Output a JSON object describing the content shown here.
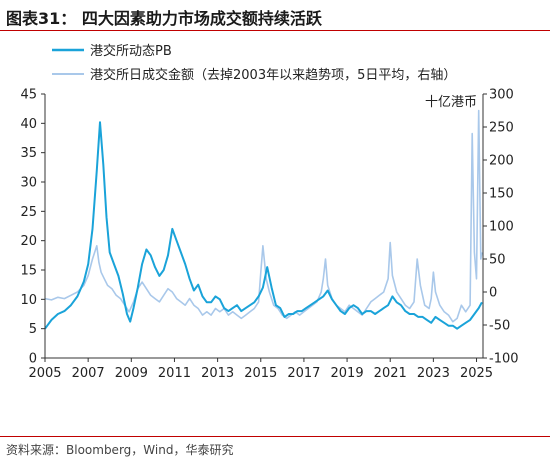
{
  "figure": {
    "title": "图表31：  四大因素助力市场成交额持续活跃",
    "source": "资料来源：Bloomberg，Wind，华泰研究"
  },
  "chart_data": {
    "type": "line",
    "left_axis": {
      "range": [
        0,
        45
      ],
      "ticks": [
        "0",
        "5",
        "10",
        "15",
        "20",
        "25",
        "30",
        "35",
        "40",
        "45"
      ]
    },
    "right_axis": {
      "range": [
        -100,
        300
      ],
      "ticks": [
        "-100",
        "-50",
        "0",
        "50",
        "100",
        "150",
        "200",
        "250",
        "300"
      ],
      "unit": "十亿港币"
    },
    "x_axis": {
      "range": [
        2005,
        2025.3
      ],
      "ticks": [
        "2005",
        "2007",
        "2009",
        "2011",
        "2013",
        "2015",
        "2017",
        "2019",
        "2021",
        "2023",
        "2025"
      ]
    },
    "legend": {
      "position": "top-left"
    },
    "grid": false,
    "series": [
      {
        "name": "港交所动态PB",
        "axis": "left",
        "color": "#1aa3d9",
        "points": [
          [
            2005.0,
            5.0
          ],
          [
            2005.3,
            6.5
          ],
          [
            2005.6,
            7.5
          ],
          [
            2005.9,
            8.0
          ],
          [
            2006.2,
            9.0
          ],
          [
            2006.5,
            10.5
          ],
          [
            2006.8,
            13.0
          ],
          [
            2007.0,
            16.0
          ],
          [
            2007.2,
            22.0
          ],
          [
            2007.4,
            32.0
          ],
          [
            2007.55,
            40.2
          ],
          [
            2007.7,
            33.0
          ],
          [
            2007.85,
            24.0
          ],
          [
            2008.0,
            18.0
          ],
          [
            2008.2,
            16.0
          ],
          [
            2008.4,
            14.0
          ],
          [
            2008.6,
            11.0
          ],
          [
            2008.8,
            7.5
          ],
          [
            2008.95,
            6.2
          ],
          [
            2009.1,
            8.5
          ],
          [
            2009.3,
            12.0
          ],
          [
            2009.5,
            16.0
          ],
          [
            2009.7,
            18.5
          ],
          [
            2009.9,
            17.5
          ],
          [
            2010.1,
            15.5
          ],
          [
            2010.3,
            14.0
          ],
          [
            2010.5,
            15.0
          ],
          [
            2010.7,
            17.5
          ],
          [
            2010.9,
            22.0
          ],
          [
            2011.1,
            20.0
          ],
          [
            2011.3,
            18.0
          ],
          [
            2011.5,
            16.0
          ],
          [
            2011.7,
            13.5
          ],
          [
            2011.9,
            11.5
          ],
          [
            2012.1,
            12.5
          ],
          [
            2012.3,
            10.5
          ],
          [
            2012.5,
            9.5
          ],
          [
            2012.7,
            9.5
          ],
          [
            2012.9,
            10.5
          ],
          [
            2013.1,
            10.0
          ],
          [
            2013.3,
            8.5
          ],
          [
            2013.5,
            8.0
          ],
          [
            2013.7,
            8.5
          ],
          [
            2013.9,
            9.0
          ],
          [
            2014.1,
            8.0
          ],
          [
            2014.3,
            8.5
          ],
          [
            2014.5,
            9.0
          ],
          [
            2014.7,
            9.5
          ],
          [
            2014.9,
            10.5
          ],
          [
            2015.1,
            12.0
          ],
          [
            2015.3,
            15.5
          ],
          [
            2015.5,
            12.0
          ],
          [
            2015.7,
            9.0
          ],
          [
            2015.9,
            8.5
          ],
          [
            2016.1,
            7.0
          ],
          [
            2016.3,
            7.5
          ],
          [
            2016.5,
            7.5
          ],
          [
            2016.7,
            8.0
          ],
          [
            2016.9,
            8.0
          ],
          [
            2017.1,
            8.5
          ],
          [
            2017.3,
            9.0
          ],
          [
            2017.5,
            9.5
          ],
          [
            2017.7,
            10.0
          ],
          [
            2017.9,
            10.5
          ],
          [
            2018.1,
            11.5
          ],
          [
            2018.3,
            10.0
          ],
          [
            2018.5,
            9.0
          ],
          [
            2018.7,
            8.0
          ],
          [
            2018.9,
            7.5
          ],
          [
            2019.1,
            8.5
          ],
          [
            2019.3,
            9.0
          ],
          [
            2019.5,
            8.5
          ],
          [
            2019.7,
            7.5
          ],
          [
            2019.9,
            8.0
          ],
          [
            2020.1,
            8.0
          ],
          [
            2020.3,
            7.5
          ],
          [
            2020.5,
            8.0
          ],
          [
            2020.7,
            8.5
          ],
          [
            2020.9,
            9.0
          ],
          [
            2021.1,
            10.5
          ],
          [
            2021.3,
            9.5
          ],
          [
            2021.5,
            9.0
          ],
          [
            2021.7,
            8.0
          ],
          [
            2021.9,
            7.5
          ],
          [
            2022.1,
            7.5
          ],
          [
            2022.3,
            7.0
          ],
          [
            2022.5,
            7.0
          ],
          [
            2022.7,
            6.5
          ],
          [
            2022.9,
            6.0
          ],
          [
            2023.1,
            7.0
          ],
          [
            2023.3,
            6.5
          ],
          [
            2023.5,
            6.0
          ],
          [
            2023.7,
            5.5
          ],
          [
            2023.9,
            5.5
          ],
          [
            2024.1,
            5.0
          ],
          [
            2024.3,
            5.5
          ],
          [
            2024.5,
            6.0
          ],
          [
            2024.7,
            6.5
          ],
          [
            2024.9,
            7.5
          ],
          [
            2025.1,
            8.5
          ],
          [
            2025.25,
            9.5
          ]
        ]
      },
      {
        "name": "港交所日成交金额（去掉2003年以来趋势项，5日平均，右轴）",
        "axis": "right",
        "color": "#a9c8ea",
        "points": [
          [
            2005.0,
            -10
          ],
          [
            2005.3,
            -12
          ],
          [
            2005.6,
            -8
          ],
          [
            2005.9,
            -10
          ],
          [
            2006.2,
            -5
          ],
          [
            2006.5,
            0
          ],
          [
            2006.8,
            10
          ],
          [
            2007.0,
            25
          ],
          [
            2007.2,
            50
          ],
          [
            2007.4,
            70
          ],
          [
            2007.5,
            45
          ],
          [
            2007.6,
            30
          ],
          [
            2007.75,
            20
          ],
          [
            2007.9,
            10
          ],
          [
            2008.1,
            5
          ],
          [
            2008.3,
            -5
          ],
          [
            2008.5,
            -10
          ],
          [
            2008.7,
            -20
          ],
          [
            2008.9,
            -30
          ],
          [
            2009.1,
            -15
          ],
          [
            2009.3,
            5
          ],
          [
            2009.5,
            15
          ],
          [
            2009.7,
            5
          ],
          [
            2009.9,
            -5
          ],
          [
            2010.1,
            -10
          ],
          [
            2010.3,
            -15
          ],
          [
            2010.5,
            -5
          ],
          [
            2010.7,
            5
          ],
          [
            2010.9,
            0
          ],
          [
            2011.1,
            -10
          ],
          [
            2011.3,
            -15
          ],
          [
            2011.5,
            -20
          ],
          [
            2011.7,
            -10
          ],
          [
            2011.9,
            -20
          ],
          [
            2012.1,
            -25
          ],
          [
            2012.3,
            -35
          ],
          [
            2012.5,
            -30
          ],
          [
            2012.7,
            -35
          ],
          [
            2012.9,
            -25
          ],
          [
            2013.1,
            -30
          ],
          [
            2013.3,
            -25
          ],
          [
            2013.5,
            -35
          ],
          [
            2013.7,
            -30
          ],
          [
            2013.9,
            -35
          ],
          [
            2014.1,
            -40
          ],
          [
            2014.3,
            -35
          ],
          [
            2014.5,
            -30
          ],
          [
            2014.7,
            -25
          ],
          [
            2014.9,
            -15
          ],
          [
            2015.0,
            30
          ],
          [
            2015.1,
            70
          ],
          [
            2015.25,
            20
          ],
          [
            2015.4,
            0
          ],
          [
            2015.6,
            -20
          ],
          [
            2015.8,
            -25
          ],
          [
            2016.0,
            -35
          ],
          [
            2016.2,
            -40
          ],
          [
            2016.4,
            -35
          ],
          [
            2016.6,
            -30
          ],
          [
            2016.8,
            -35
          ],
          [
            2017.0,
            -30
          ],
          [
            2017.2,
            -25
          ],
          [
            2017.4,
            -20
          ],
          [
            2017.6,
            -15
          ],
          [
            2017.8,
            0
          ],
          [
            2017.9,
            20
          ],
          [
            2018.0,
            50
          ],
          [
            2018.1,
            10
          ],
          [
            2018.3,
            -10
          ],
          [
            2018.5,
            -20
          ],
          [
            2018.7,
            -25
          ],
          [
            2018.9,
            -30
          ],
          [
            2019.1,
            -20
          ],
          [
            2019.3,
            -25
          ],
          [
            2019.5,
            -30
          ],
          [
            2019.7,
            -35
          ],
          [
            2019.9,
            -25
          ],
          [
            2020.1,
            -15
          ],
          [
            2020.3,
            -10
          ],
          [
            2020.5,
            -5
          ],
          [
            2020.7,
            0
          ],
          [
            2020.9,
            20
          ],
          [
            2021.0,
            75
          ],
          [
            2021.1,
            25
          ],
          [
            2021.3,
            0
          ],
          [
            2021.5,
            -10
          ],
          [
            2021.7,
            -20
          ],
          [
            2021.9,
            -25
          ],
          [
            2022.1,
            -15
          ],
          [
            2022.25,
            50
          ],
          [
            2022.4,
            10
          ],
          [
            2022.6,
            -20
          ],
          [
            2022.8,
            -25
          ],
          [
            2022.9,
            -10
          ],
          [
            2023.0,
            30
          ],
          [
            2023.1,
            0
          ],
          [
            2023.3,
            -20
          ],
          [
            2023.5,
            -30
          ],
          [
            2023.7,
            -35
          ],
          [
            2023.9,
            -45
          ],
          [
            2024.1,
            -40
          ],
          [
            2024.3,
            -20
          ],
          [
            2024.5,
            -30
          ],
          [
            2024.7,
            -20
          ],
          [
            2024.8,
            240
          ],
          [
            2024.9,
            60
          ],
          [
            2025.0,
            20
          ],
          [
            2025.1,
            275
          ],
          [
            2025.2,
            50
          ],
          [
            2025.25,
            60
          ]
        ]
      }
    ]
  }
}
